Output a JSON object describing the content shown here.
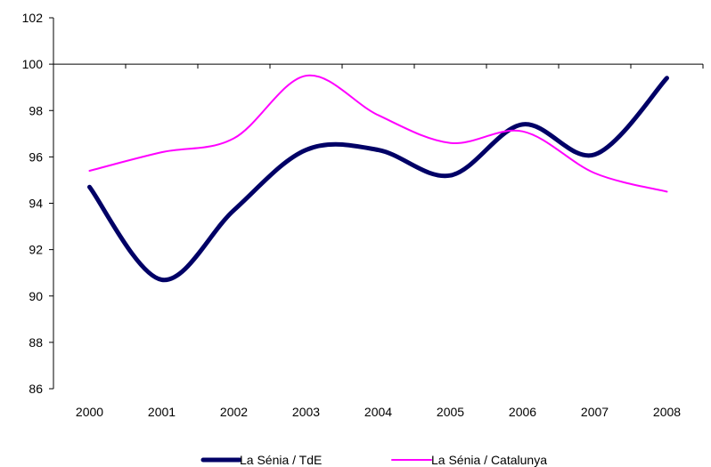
{
  "chart_data": {
    "type": "line",
    "categories": [
      "2000",
      "2001",
      "2002",
      "2003",
      "2004",
      "2005",
      "2006",
      "2007",
      "2008"
    ],
    "series": [
      {
        "name": "La Sénia / TdE",
        "color": "#000066",
        "values": [
          94.7,
          90.7,
          93.7,
          96.3,
          96.3,
          95.2,
          97.4,
          96.1,
          99.4
        ]
      },
      {
        "name": "La Sénia / Catalunya",
        "color": "#ff00ff",
        "values": [
          95.4,
          96.2,
          96.8,
          99.5,
          97.8,
          96.6,
          97.1,
          95.3,
          94.5
        ]
      }
    ],
    "ylim": [
      86,
      102
    ],
    "yticks": [
      86,
      88,
      90,
      92,
      94,
      96,
      98,
      100,
      102
    ],
    "reference_line": 100,
    "grid": false,
    "legend_position": "bottom"
  }
}
